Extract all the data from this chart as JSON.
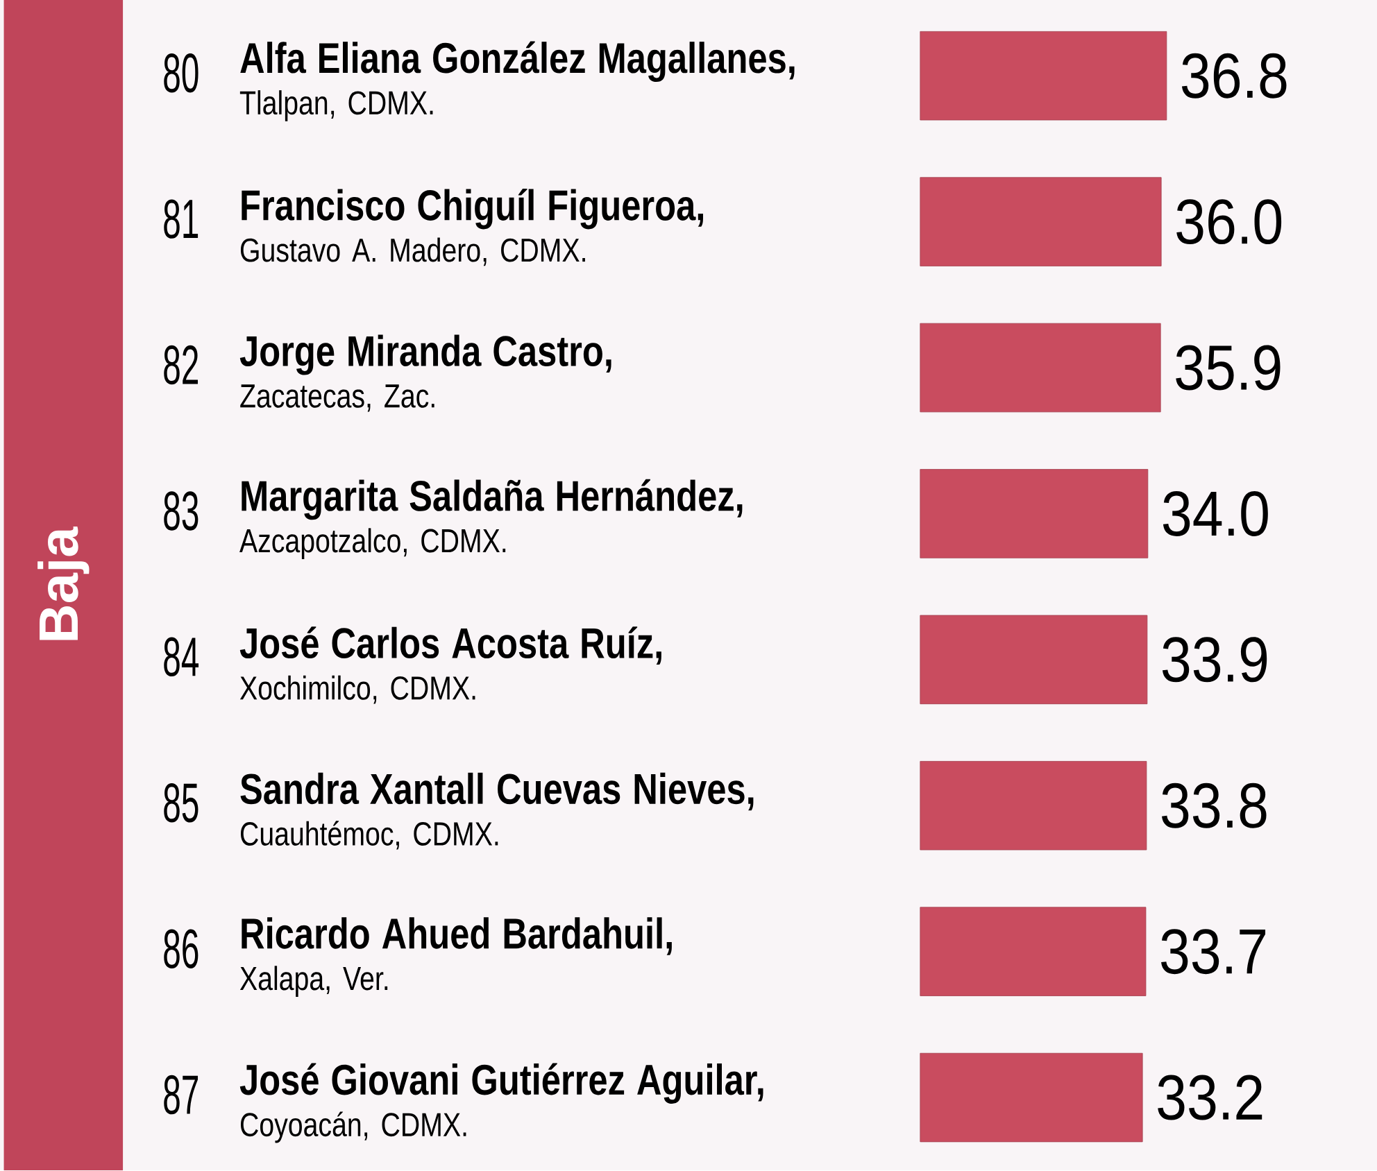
{
  "chart_data": {
    "type": "bar",
    "orientation": "horizontal",
    "ylabel": "Baja",
    "categories": [
      "**Alfa Eliana González Magallanes,** Tlalpan, CDMX.",
      "**Francisco Chiguíl Figueroa,** Gustavo A. Madero, CDMX.",
      "**Jorge Miranda Castro,** Zacatecas, Zac.",
      "**Margarita Saldaña Hernández,** Azcapotzalco, CDMX.",
      "**José Carlos Acosta Ruíz,** Xochimilco, CDMX.",
      "**Sandra Xantall Cuevas Nieves,** Cuauhtémoc, CDMX.",
      "**Ricardo Ahued Bardahuil,** Xalapa, Ver.",
      "**José Giovani Gutiérrez Aguilar,** Coyoacán, CDMX."
    ],
    "values": [
      36.8,
      36.0,
      35.9,
      34.0,
      33.9,
      33.8,
      33.7,
      33.2
    ],
    "value_labels": [
      "36.8",
      "36.0",
      "35.9",
      "34.0",
      "33.9",
      "33.8",
      "33.7",
      "33.2"
    ],
    "color": "#c94c5f",
    "annotations": [
      "80",
      "81",
      "82",
      "83",
      "84",
      "85",
      "86",
      "87"
    ]
  }
}
